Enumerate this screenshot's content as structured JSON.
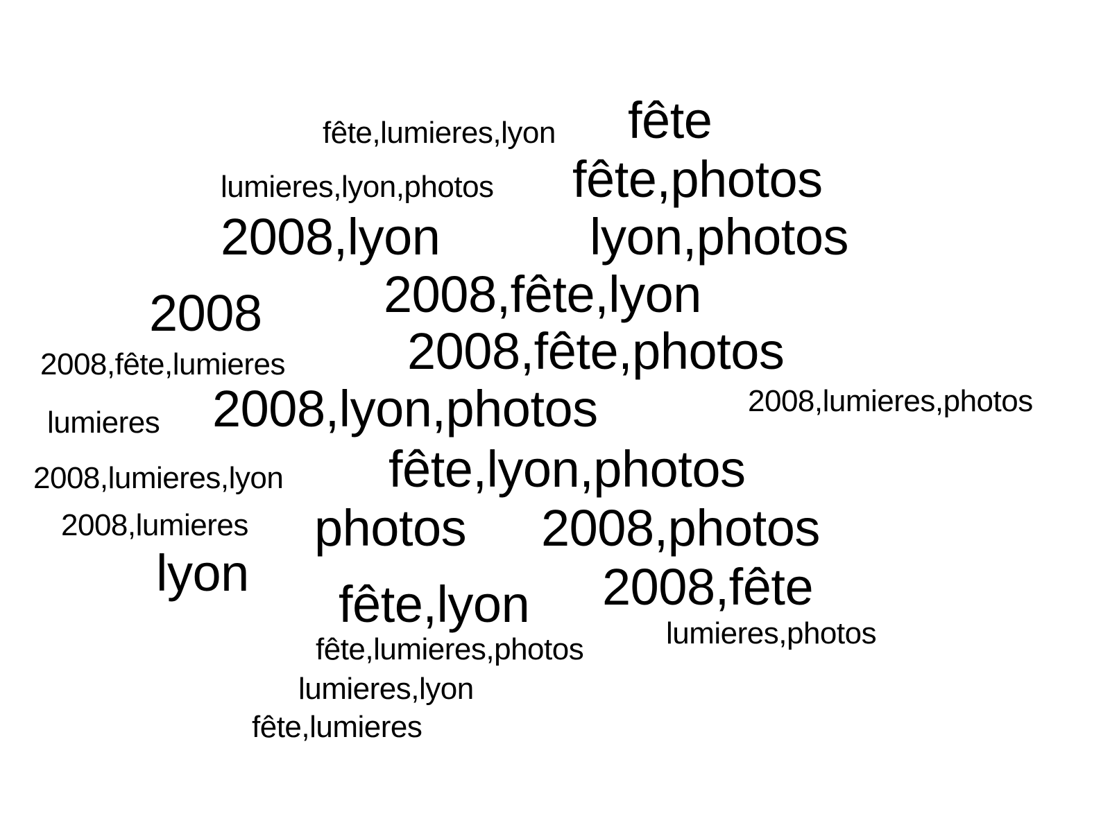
{
  "tag_cloud": {
    "tags": [
      "fête,lumieres,lyon",
      "fête",
      "lumieres,lyon,photos",
      "fête,photos",
      "2008,lyon",
      "lyon,photos",
      "2008,fête,lyon",
      "2008",
      "2008,fête,photos",
      "2008,fête,lumieres",
      "2008,lyon,photos",
      "2008,lumieres,photos",
      "lumieres",
      "fête,lyon,photos",
      "2008,lumieres,lyon",
      "2008,lumieres",
      "photos",
      "2008,photos",
      "lyon",
      "2008,fête",
      "fête,lyon",
      "lumieres,photos",
      "fête,lumieres,photos",
      "lumieres,lyon",
      "fête,lumieres"
    ],
    "text_color": "#000000",
    "background_color": "#ffffff"
  }
}
